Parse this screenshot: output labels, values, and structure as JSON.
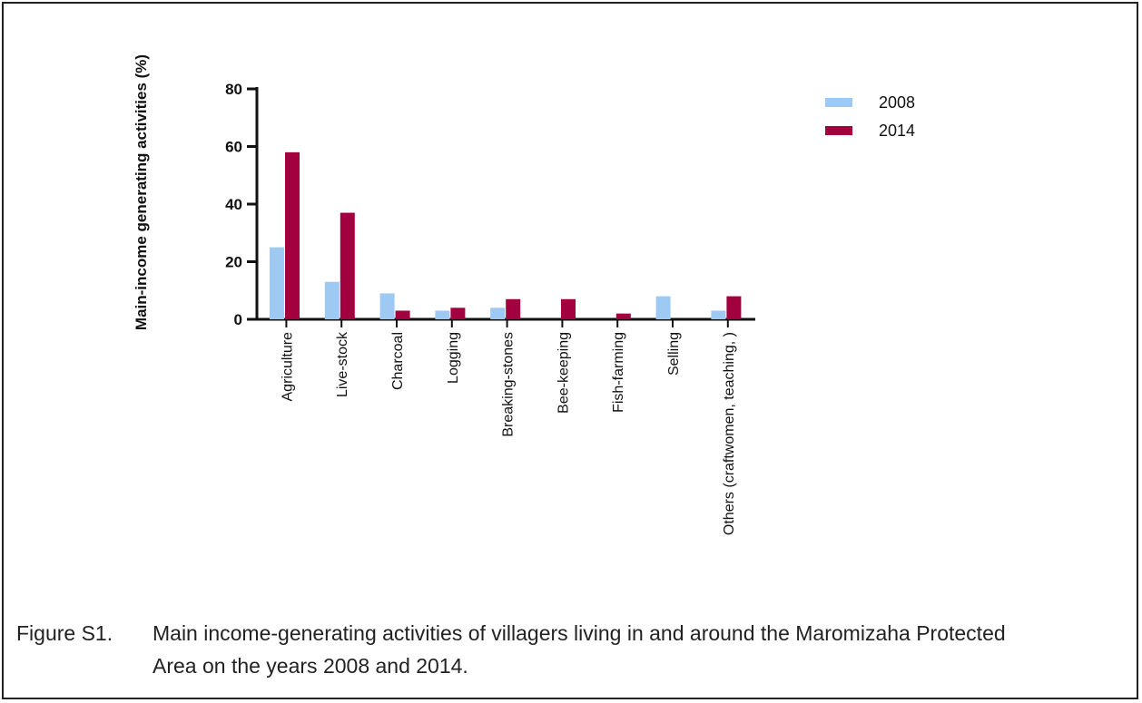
{
  "chart_data": {
    "type": "bar",
    "title": "",
    "ylabel": "Main-income generating activities (%)",
    "xlabel": "",
    "ylim": [
      0,
      80
    ],
    "yticks": [
      0,
      20,
      40,
      60,
      80
    ],
    "categories": [
      "Agriculture",
      "Live-stock",
      "Charcoal",
      "Logging",
      "Breaking-stones",
      "Bee-keeping",
      "Fish-farming",
      "Selling",
      "Others (craftwomen, teaching, )"
    ],
    "series": [
      {
        "name": "2008",
        "color": "#9ec9f2",
        "values": [
          25,
          13,
          9,
          3,
          4,
          0,
          0,
          8,
          3
        ]
      },
      {
        "name": "2014",
        "color": "#a3003f",
        "values": [
          58,
          37,
          3,
          4,
          7,
          7,
          2,
          0,
          8
        ]
      }
    ],
    "legend_position": "top-right",
    "grid": false
  },
  "caption": {
    "label": "Figure S1.",
    "line1": "Main income-generating activities of villagers living in and around the Maromizaha Protected",
    "line2": "Area on the years 2008 and 2014."
  }
}
